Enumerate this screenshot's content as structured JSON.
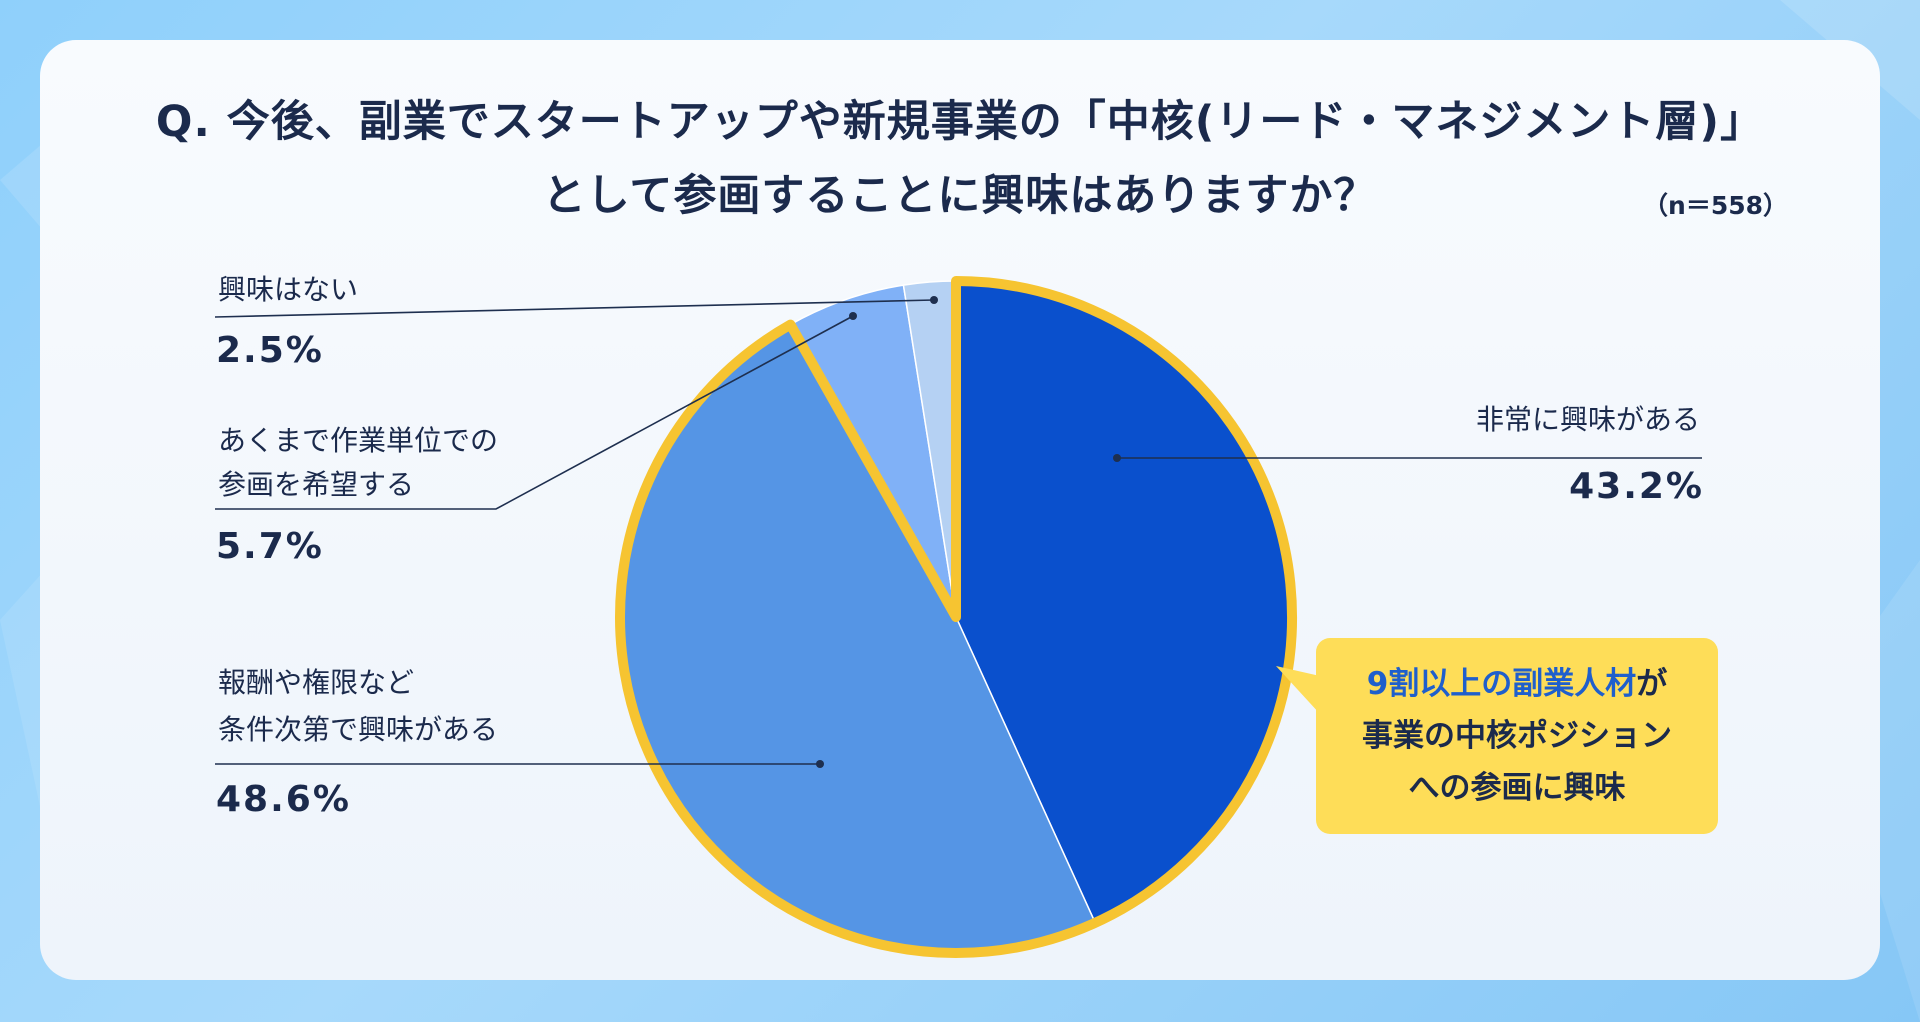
{
  "title": {
    "line1": "Q. 今後、副業でスタートアップや新規事業の「中核(リード・マネジメント層)」",
    "line2": "として参画することに興味はありますか？",
    "sample_size": "（n＝558）"
  },
  "chart_data": {
    "type": "pie",
    "categories": [
      [
        "非常に興味がある"
      ],
      [
        "報酬や権限など",
        "条件次第で興味がある"
      ],
      [
        "あくまで作業単位での",
        "参画を希望する"
      ],
      [
        "興味はない"
      ]
    ],
    "values": [
      43.2,
      48.6,
      5.7,
      2.5
    ],
    "value_labels": [
      "43.2%",
      "48.6%",
      "5.7%",
      "2.5%"
    ],
    "colors": [
      "#0a50cd",
      "#5595e5",
      "#80b1f7",
      "#b5d1f3"
    ],
    "start": "top",
    "direction": "clockwise"
  },
  "callout": {
    "highlight": "9割以上の副業人材",
    "line1_rest": "が",
    "line2": "事業の中核ポジション",
    "line3": "への参画に興味"
  },
  "colors": {
    "highlight_outline": "#f6c431",
    "callout_bg": "#fedd58",
    "callout_accent": "#1f5fcc",
    "text": "#1b2a4c",
    "leader_line": "#1e2f4f"
  }
}
